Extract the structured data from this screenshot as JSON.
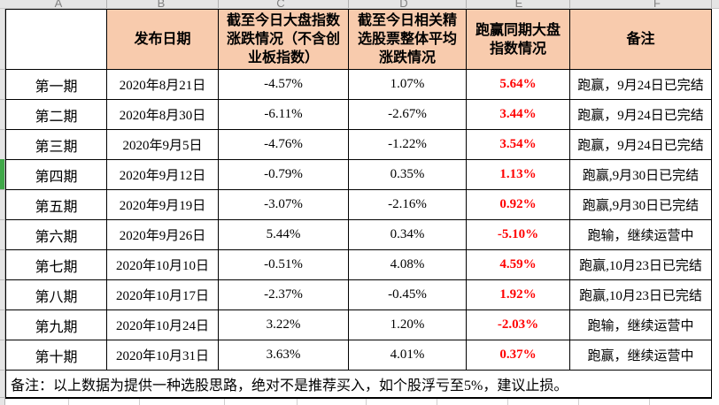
{
  "sheet": {
    "column_letters": [
      "A",
      "B",
      "C",
      "D",
      "E",
      "F"
    ]
  },
  "table": {
    "headers": [
      "",
      "发布日期",
      "截至今日大盘指数\n涨跌情况（不含创\n业板指数）",
      "截至今日相关精\n选股票整体平均\n涨跌情况",
      "跑赢同期大盘\n指数情况",
      "备注"
    ],
    "rows": [
      {
        "period": "第一期",
        "date": "2020年8月21日",
        "index_change": "-4.57%",
        "stock_change": "1.07%",
        "outperform": "5.64%",
        "remark": "跑赢，9月24日已完结"
      },
      {
        "period": "第二期",
        "date": "2020年8月30日",
        "index_change": "-6.11%",
        "stock_change": "-2.67%",
        "outperform": "3.44%",
        "remark": "跑赢，9月24日已完结"
      },
      {
        "period": "第三期",
        "date": "2020年9月5日",
        "index_change": "-4.76%",
        "stock_change": "-1.22%",
        "outperform": "3.54%",
        "remark": "跑赢，9月24日已完结"
      },
      {
        "period": "第四期",
        "date": "2020年9月12日",
        "index_change": "-0.79%",
        "stock_change": "0.35%",
        "outperform": "1.13%",
        "remark": "跑赢,9月30日已完结"
      },
      {
        "period": "第五期",
        "date": "2020年9月19日",
        "index_change": "-3.07%",
        "stock_change": "-2.16%",
        "outperform": "0.92%",
        "remark": "跑赢,9月30日已完结"
      },
      {
        "period": "第六期",
        "date": "2020年9月26日",
        "index_change": "5.44%",
        "stock_change": "0.34%",
        "outperform": "-5.10%",
        "remark": "跑输，继续运营中"
      },
      {
        "period": "第七期",
        "date": "2020年10月10日",
        "index_change": "-0.51%",
        "stock_change": "4.08%",
        "outperform": "4.59%",
        "remark": "跑赢,10月23日已完结"
      },
      {
        "period": "第八期",
        "date": "2020年10月17日",
        "index_change": "-2.37%",
        "stock_change": "-0.45%",
        "outperform": "1.92%",
        "remark": "跑赢,10月23日已完结"
      },
      {
        "period": "第九期",
        "date": "2020年10月24日",
        "index_change": "3.22%",
        "stock_change": "1.20%",
        "outperform": "-2.03%",
        "remark": "跑输，继续运营中"
      },
      {
        "period": "第十期",
        "date": "2020年10月31日",
        "index_change": "3.63%",
        "stock_change": "4.01%",
        "outperform": "0.37%",
        "remark": "跑赢，继续运营中"
      }
    ],
    "footer_note": "备注：以上数据为提供一种选股思路，绝对不是推荐买入，如个股浮亏至5%，建议止损。"
  },
  "colors": {
    "header_fill": "#F8CBAD",
    "highlight_red": "#FF0000",
    "selection_green": "#3FA848",
    "strip_bg": "#E5E5E5",
    "strip_text": "#808080"
  }
}
